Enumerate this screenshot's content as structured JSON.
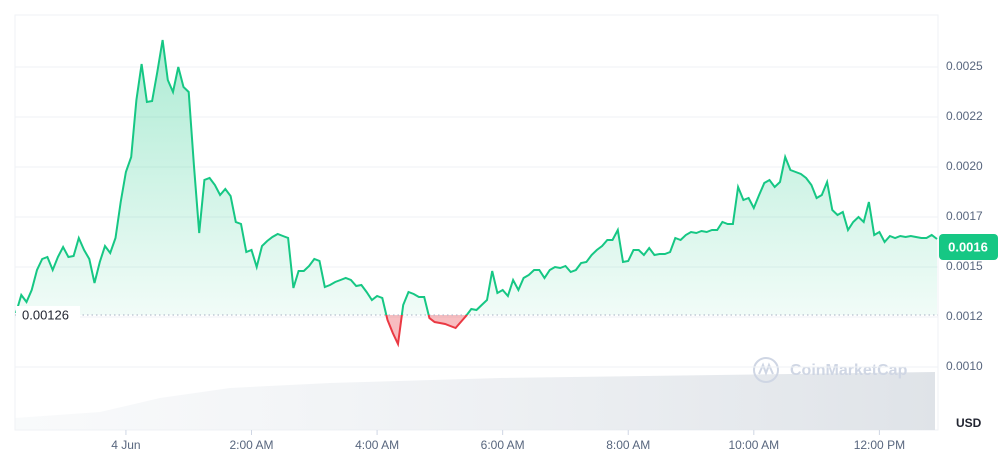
{
  "chart_data": {
    "type": "line",
    "x": [
      -105,
      -100,
      -95,
      -90,
      -85,
      -80,
      -75,
      -70,
      -65,
      -60,
      -55,
      -50,
      -45,
      -40,
      -35,
      -30,
      -25,
      -20,
      -15,
      -10,
      -5,
      0,
      5,
      10,
      15,
      20,
      25,
      30,
      35,
      40,
      45,
      50,
      55,
      60,
      65,
      70,
      75,
      80,
      85,
      90,
      95,
      100,
      105,
      110,
      115,
      120,
      125,
      130,
      135,
      140,
      145,
      150,
      155,
      160,
      165,
      170,
      175,
      180,
      185,
      190,
      195,
      200,
      205,
      210,
      215,
      220,
      225,
      230,
      235,
      240,
      245,
      250,
      255,
      260,
      265,
      270,
      275,
      280,
      285,
      290,
      295,
      300,
      305,
      310,
      315,
      320,
      325,
      330,
      335,
      340,
      345,
      350,
      355,
      360,
      365,
      370,
      375,
      380,
      385,
      390,
      395,
      400,
      405,
      410,
      415,
      420,
      425,
      430,
      435,
      440,
      445,
      450,
      455,
      460,
      465,
      470,
      475,
      480,
      485,
      490,
      495,
      500,
      505,
      510,
      515,
      520,
      525,
      530,
      535,
      540,
      545,
      550,
      555,
      560,
      565,
      570,
      575,
      580,
      585,
      590,
      595,
      600,
      605,
      610,
      615,
      620,
      625,
      630,
      635,
      640,
      645,
      650,
      655,
      660,
      665,
      670,
      675,
      680,
      685,
      690,
      695,
      700,
      705,
      710,
      715,
      720,
      725,
      730,
      735,
      740,
      745,
      750,
      755,
      760,
      765,
      770,
      775
    ],
    "series": [
      {
        "color": "#16c784",
        "values": [
          0.00127,
          0.00136,
          0.001325,
          0.001385,
          0.001485,
          0.00154,
          0.00155,
          0.001485,
          0.00155,
          0.0016,
          0.00155,
          0.001555,
          0.001645,
          0.001585,
          0.00154,
          0.00142,
          0.001525,
          0.001605,
          0.00157,
          0.001645,
          0.001825,
          0.001975,
          0.00205,
          0.002335,
          0.002515,
          0.002325,
          0.00233,
          0.002475,
          0.002635,
          0.002435,
          0.002375,
          0.0025,
          0.0024,
          0.002375,
          0.00201,
          0.00167,
          0.001935,
          0.001945,
          0.00191,
          0.00186,
          0.00189,
          0.001855,
          0.001725,
          0.001715,
          0.001575,
          0.001585,
          0.0015,
          0.001605,
          0.00163,
          0.00165,
          0.001665,
          0.001655,
          0.001645,
          0.001395,
          0.00148,
          0.00148,
          0.001505,
          0.00154,
          0.00153,
          0.0014,
          0.00141,
          0.001425,
          0.001435,
          0.001445,
          0.001435,
          0.001405,
          0.00141,
          0.001375,
          0.001335,
          0.001355,
          0.001345,
          0.001235,
          0.00117,
          0.001115,
          0.00131,
          0.001375,
          0.001365,
          0.00135,
          0.00135,
          0.001245,
          0.001225,
          0.00122,
          0.001215,
          0.001205,
          0.001195,
          0.001225,
          0.001255,
          0.00129,
          0.001285,
          0.00131,
          0.001335,
          0.00148,
          0.00137,
          0.001385,
          0.001355,
          0.001435,
          0.001385,
          0.001445,
          0.00146,
          0.001485,
          0.001485,
          0.001445,
          0.001485,
          0.0015,
          0.001495,
          0.001505,
          0.001475,
          0.001485,
          0.00152,
          0.001525,
          0.00156,
          0.001585,
          0.001605,
          0.001635,
          0.001635,
          0.001685,
          0.001525,
          0.00153,
          0.001585,
          0.001585,
          0.00156,
          0.001595,
          0.00156,
          0.001565,
          0.001565,
          0.001575,
          0.001645,
          0.001635,
          0.00166,
          0.001675,
          0.00167,
          0.00168,
          0.001675,
          0.001685,
          0.001685,
          0.001725,
          0.001715,
          0.001715,
          0.0019,
          0.001835,
          0.001845,
          0.001795,
          0.00186,
          0.00192,
          0.001935,
          0.0019,
          0.001925,
          0.00205,
          0.001985,
          0.001975,
          0.001965,
          0.001945,
          0.00191,
          0.001845,
          0.00186,
          0.001925,
          0.001785,
          0.00176,
          0.001775,
          0.001685,
          0.001725,
          0.00175,
          0.001725,
          0.001825,
          0.00166,
          0.001675,
          0.001625,
          0.001655,
          0.001645,
          0.001655,
          0.00165,
          0.001655,
          0.00165,
          0.001645,
          0.001645,
          0.00166,
          0.00164
        ]
      }
    ],
    "down_color": "#ea3943",
    "reference": 0.00126,
    "current_price": 0.0016,
    "xlim": [
      -106,
      776
    ],
    "xticks": [
      {
        "value": 0,
        "label": "4 Jun"
      },
      {
        "value": 120,
        "label": "2:00 AM"
      },
      {
        "value": 240,
        "label": "4:00 AM"
      },
      {
        "value": 360,
        "label": "6:00 AM"
      },
      {
        "value": 480,
        "label": "8:00 AM"
      },
      {
        "value": 600,
        "label": "10:00 AM"
      },
      {
        "value": 720,
        "label": "12:00 PM"
      }
    ],
    "ylim": [
      0.000685,
      0.00276
    ],
    "yticks": [
      {
        "value": 0.001,
        "label": "0.0010"
      },
      {
        "value": 0.00125,
        "label": "0.0012"
      },
      0.0015,
      {
        "value": 0.00175,
        "label": "0.0017"
      },
      {
        "value": 0.002,
        "label": "0.0020"
      },
      {
        "value": 0.00225,
        "label": "0.0022"
      },
      0.0025
    ],
    "y_unit": "USD",
    "watermark": "CoinMarketCap",
    "grid": true
  }
}
